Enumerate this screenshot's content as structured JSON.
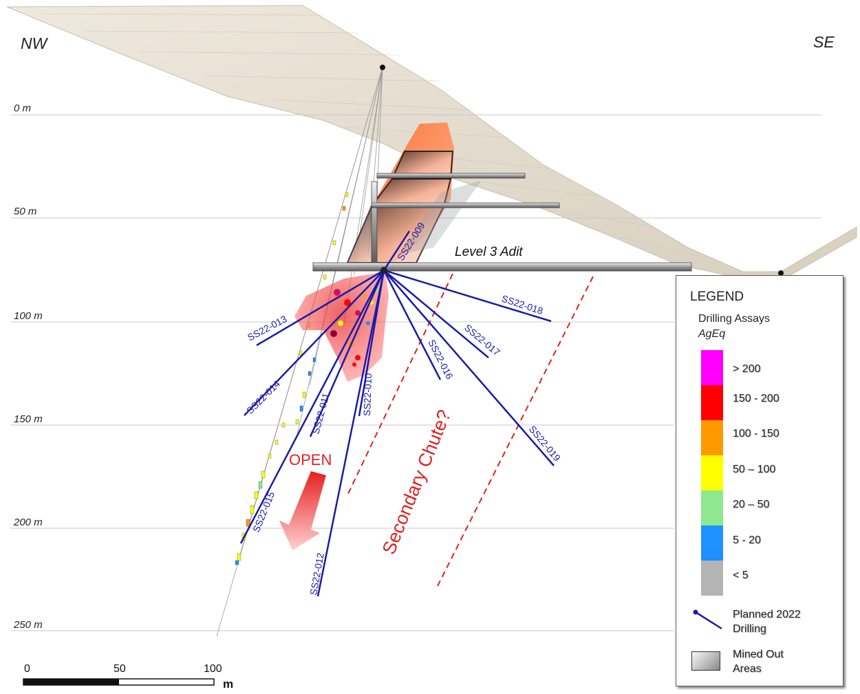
{
  "orientation": {
    "left": "NW",
    "right": "SE"
  },
  "depth_labels": [
    "0 m",
    "50 m",
    "100 m",
    "150 m",
    "200 m",
    "250 m"
  ],
  "level_label": "Level 3 Adit",
  "annotations": {
    "open": "OPEN",
    "secondary": "Secondary Chute?"
  },
  "drill_holes": [
    "SS22-009",
    "SS22-010",
    "SS22-011",
    "SS22-012",
    "SS22-013",
    "SS22-014",
    "SS22-015",
    "SS22-016",
    "SS22-017",
    "SS22-018",
    "SS22-019"
  ],
  "scale_bar": {
    "ticks": [
      "0",
      "50",
      "100"
    ],
    "unit": "m"
  },
  "legend": {
    "title": "LEGEND",
    "assay_title": "Drilling Assays",
    "assay_unit": "AgEq",
    "ranges": [
      {
        "label": "> 200",
        "color": "#ff00ff"
      },
      {
        "label": "150 - 200",
        "color": "#ff0000"
      },
      {
        "label": "100 - 150",
        "color": "#ff9900"
      },
      {
        "label": "50 – 100",
        "color": "#ffff00"
      },
      {
        "label": "20 – 50",
        "color": "#8ee88e"
      },
      {
        "label": "5 - 20",
        "color": "#1e90ff"
      },
      {
        "label": "< 5",
        "color": "#b4b4b4"
      }
    ],
    "planned": "Planned 2022 Drilling",
    "mined": "Mined Out Areas"
  },
  "colors": {
    "drill_line": "#1a1aa8",
    "annotation_red": "#e02020",
    "terrain": "#e3dccd",
    "orebody": "#ff7a4d"
  }
}
